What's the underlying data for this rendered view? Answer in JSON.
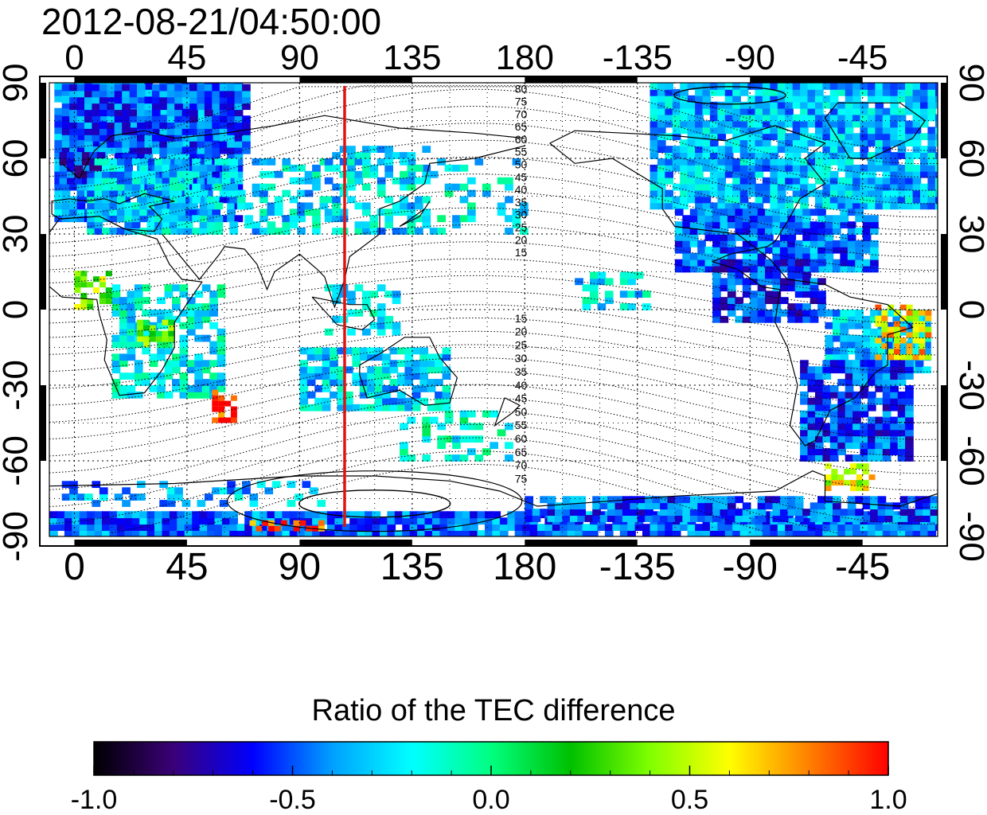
{
  "header": {
    "timestamp": "2012-08-21/04:50:00"
  },
  "map": {
    "projection": "equirectangular",
    "lon_ticks": [
      "0",
      "45",
      "90",
      "135",
      "180",
      "-135",
      "-90",
      "-45"
    ],
    "lat_ticks": [
      "90",
      "60",
      "30",
      "0",
      "-30",
      "-60",
      "-90"
    ],
    "lon_tick_values": [
      0,
      45,
      90,
      135,
      180,
      225,
      270,
      315
    ],
    "lat_tick_values": [
      90,
      60,
      30,
      0,
      -30,
      -60,
      -90
    ],
    "lon_range": [
      -10,
      345
    ],
    "lat_range": [
      -90,
      90
    ],
    "gridlines": true,
    "highlight_meridian_lon": 108,
    "highlight_color": "#e11111",
    "north_contour_labels": [
      "80",
      "75",
      "70",
      "65",
      "60",
      "55",
      "50",
      "45",
      "40",
      "35",
      "30",
      "25",
      "20",
      "15"
    ],
    "south_contour_labels": [
      "15",
      "20",
      "25",
      "30",
      "35",
      "40",
      "45",
      "50",
      "55",
      "60",
      "65",
      "70",
      "75"
    ]
  },
  "colorbar": {
    "title": "Ratio of the TEC difference",
    "min": -1.0,
    "max": 1.0,
    "tick_labels": [
      "-1.0",
      "-0.5",
      "0.0",
      "0.5",
      "1.0"
    ],
    "tick_values": [
      -1.0,
      -0.5,
      0.0,
      0.5,
      1.0
    ],
    "colors": [
      "#000000",
      "#3a0078",
      "#0000ff",
      "#00a0ff",
      "#00ffff",
      "#00ff80",
      "#00c000",
      "#80ff00",
      "#ffff00",
      "#ff8000",
      "#ff0000"
    ]
  }
}
